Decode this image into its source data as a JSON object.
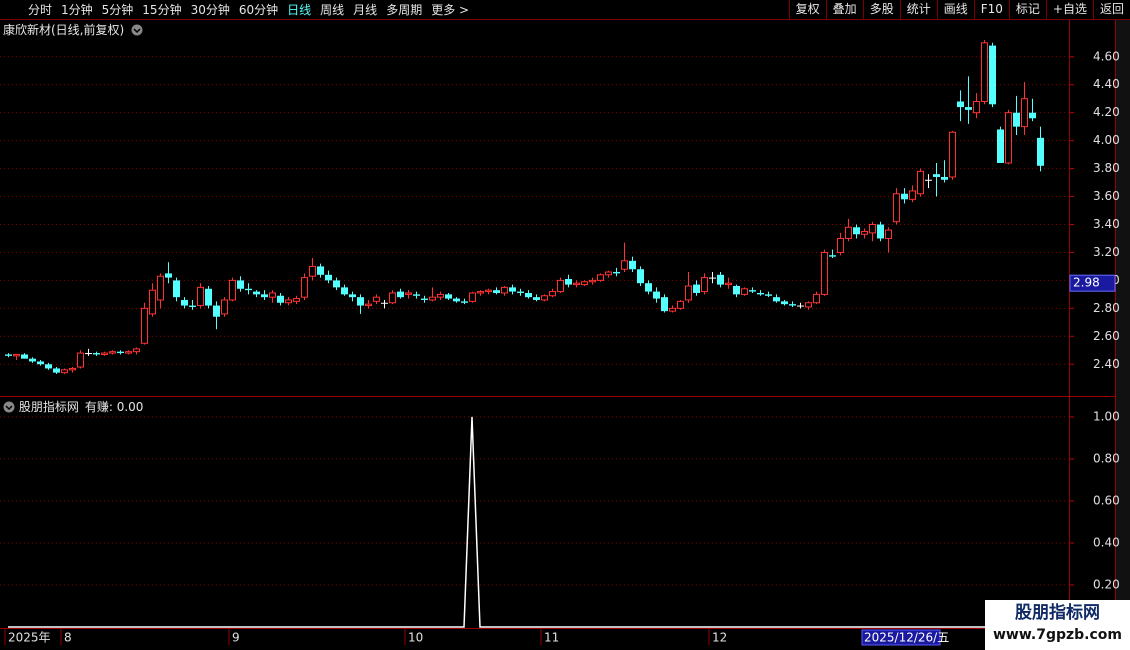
{
  "toolbar": {
    "periods": [
      "分时",
      "1分钟",
      "5分钟",
      "15分钟",
      "30分钟",
      "60分钟",
      "日线",
      "周线",
      "月线",
      "多周期",
      "更多 >"
    ],
    "active_period": 6,
    "buttons": [
      "复权",
      "叠加",
      "多股",
      "统计",
      "画线",
      "F10",
      "标记",
      "+自选",
      "返回"
    ]
  },
  "chart_data": [
    {
      "type": "candlestick",
      "title": "康欣新材(日线,前复权)",
      "categories": [
        "2025年",
        null,
        null,
        null,
        null,
        null,
        null,
        "8",
        null,
        null,
        null,
        null,
        null,
        null,
        null,
        null,
        null,
        null,
        null,
        null,
        null,
        null,
        null,
        null,
        null,
        null,
        null,
        null,
        "9",
        null,
        null,
        null,
        null,
        null,
        null,
        null,
        null,
        null,
        null,
        null,
        null,
        null,
        null,
        null,
        null,
        null,
        null,
        null,
        null,
        null,
        "10",
        null,
        null,
        null,
        null,
        null,
        null,
        null,
        null,
        null,
        null,
        null,
        null,
        null,
        null,
        null,
        null,
        "11",
        null,
        null,
        null,
        null,
        null,
        null,
        null,
        null,
        null,
        null,
        null,
        null,
        null,
        null,
        null,
        null,
        null,
        null,
        null,
        null,
        "12",
        null,
        null,
        null,
        null,
        null,
        null,
        null,
        null,
        null,
        null,
        null,
        null,
        null,
        null,
        null,
        null,
        null,
        null,
        "2025/12/26/五",
        null,
        null,
        null,
        null,
        null,
        null,
        null,
        null,
        null,
        null,
        null,
        null,
        null,
        null,
        null,
        null,
        null,
        null,
        null,
        null,
        null,
        null
      ],
      "open": [
        2.47,
        2.46,
        2.47,
        2.44,
        2.42,
        2.4,
        2.37,
        2.34,
        2.36,
        2.38,
        2.48,
        2.48,
        2.47,
        2.48,
        2.49,
        2.48,
        2.49,
        2.55,
        2.76,
        2.86,
        3.05,
        3.0,
        2.86,
        2.82,
        2.82,
        2.94,
        2.82,
        2.76,
        2.86,
        3.0,
        2.94,
        2.92,
        2.9,
        2.88,
        2.89,
        2.84,
        2.85,
        2.88,
        3.03,
        3.1,
        3.04,
        3.0,
        2.95,
        2.9,
        2.88,
        2.82,
        2.85,
        2.84,
        2.84,
        2.92,
        2.9,
        2.9,
        2.87,
        2.86,
        2.88,
        2.9,
        2.87,
        2.85,
        2.85,
        2.91,
        2.92,
        2.93,
        2.91,
        2.95,
        2.92,
        2.91,
        2.88,
        2.86,
        2.89,
        2.92,
        3.01,
        2.97,
        2.97,
        2.99,
        3.0,
        3.04,
        3.06,
        3.08,
        3.14,
        3.08,
        2.98,
        2.92,
        2.88,
        2.78,
        2.8,
        2.86,
        2.97,
        2.92,
        3.02,
        3.04,
        2.97,
        2.96,
        2.9,
        2.93,
        2.91,
        2.9,
        2.88,
        2.85,
        2.83,
        2.82,
        2.81,
        2.84,
        2.9,
        3.18,
        3.2,
        3.3,
        3.38,
        3.33,
        3.34,
        3.4,
        3.3,
        3.42,
        3.62,
        3.58,
        3.62,
        3.72,
        3.76,
        3.74,
        3.74,
        4.28,
        4.24,
        4.2,
        4.28,
        4.68,
        4.08,
        3.84,
        4.2,
        4.1,
        4.2,
        4.02
      ],
      "high": [
        2.48,
        2.47,
        2.48,
        2.45,
        2.43,
        2.41,
        2.38,
        2.37,
        2.38,
        2.5,
        2.51,
        2.49,
        2.49,
        2.5,
        2.5,
        2.5,
        2.52,
        2.84,
        2.98,
        3.05,
        3.13,
        3.02,
        2.88,
        2.86,
        2.98,
        2.96,
        2.85,
        2.88,
        3.02,
        3.03,
        2.98,
        2.93,
        2.93,
        2.93,
        2.91,
        2.88,
        2.89,
        3.05,
        3.16,
        3.12,
        3.07,
        3.02,
        2.97,
        2.92,
        2.9,
        2.86,
        2.9,
        2.86,
        2.93,
        2.94,
        2.93,
        2.92,
        2.89,
        2.95,
        2.92,
        2.91,
        2.88,
        2.87,
        2.92,
        2.93,
        2.94,
        2.95,
        2.96,
        2.97,
        2.94,
        2.93,
        2.9,
        2.9,
        2.94,
        3.02,
        3.04,
        3.0,
        3.0,
        3.02,
        3.05,
        3.07,
        3.09,
        3.27,
        3.17,
        3.1,
        3.0,
        2.95,
        2.9,
        2.82,
        2.86,
        3.06,
        3.0,
        3.05,
        3.06,
        3.06,
        3.02,
        2.97,
        2.95,
        2.95,
        2.93,
        2.92,
        2.9,
        2.86,
        2.85,
        2.84,
        2.85,
        2.92,
        3.22,
        3.22,
        3.34,
        3.44,
        3.4,
        3.37,
        3.42,
        3.42,
        3.38,
        3.66,
        3.66,
        3.68,
        3.8,
        3.76,
        3.84,
        3.86,
        4.07,
        4.36,
        4.46,
        4.34,
        4.72,
        4.7,
        4.1,
        4.22,
        4.32,
        4.42,
        4.3,
        4.1
      ],
      "low": [
        2.45,
        2.43,
        2.44,
        2.41,
        2.39,
        2.36,
        2.33,
        2.33,
        2.34,
        2.37,
        2.46,
        2.46,
        2.46,
        2.47,
        2.47,
        2.47,
        2.47,
        2.54,
        2.74,
        2.8,
        2.98,
        2.85,
        2.8,
        2.79,
        2.8,
        2.8,
        2.65,
        2.74,
        2.85,
        2.92,
        2.9,
        2.88,
        2.86,
        2.84,
        2.82,
        2.82,
        2.83,
        2.86,
        3.0,
        3.02,
        2.98,
        2.93,
        2.89,
        2.85,
        2.76,
        2.8,
        2.83,
        2.8,
        2.83,
        2.87,
        2.87,
        2.87,
        2.84,
        2.85,
        2.86,
        2.86,
        2.84,
        2.83,
        2.84,
        2.89,
        2.9,
        2.9,
        2.89,
        2.9,
        2.89,
        2.87,
        2.85,
        2.85,
        2.88,
        2.91,
        2.95,
        2.95,
        2.96,
        2.97,
        2.99,
        3.02,
        3.03,
        3.06,
        3.06,
        2.96,
        2.9,
        2.84,
        2.77,
        2.77,
        2.79,
        2.84,
        2.89,
        2.9,
        2.98,
        2.95,
        2.94,
        2.88,
        2.89,
        2.91,
        2.89,
        2.88,
        2.84,
        2.82,
        2.81,
        2.8,
        2.79,
        2.83,
        2.89,
        3.16,
        3.18,
        3.28,
        3.3,
        3.3,
        3.28,
        3.28,
        3.2,
        3.4,
        3.55,
        3.56,
        3.6,
        3.66,
        3.6,
        3.7,
        3.72,
        4.14,
        4.12,
        4.16,
        4.26,
        4.24,
        3.84,
        3.83,
        4.04,
        4.04,
        4.14,
        3.78
      ],
      "close": [
        2.46,
        2.47,
        2.44,
        2.42,
        2.4,
        2.37,
        2.34,
        2.36,
        2.37,
        2.48,
        2.48,
        2.47,
        2.48,
        2.49,
        2.48,
        2.49,
        2.51,
        2.8,
        2.93,
        3.03,
        3.02,
        2.88,
        2.82,
        2.81,
        2.95,
        2.82,
        2.74,
        2.86,
        3.0,
        2.94,
        2.93,
        2.9,
        2.88,
        2.91,
        2.84,
        2.86,
        2.87,
        3.02,
        3.1,
        3.04,
        3.0,
        2.95,
        2.9,
        2.88,
        2.82,
        2.83,
        2.88,
        2.84,
        2.91,
        2.88,
        2.91,
        2.89,
        2.86,
        2.88,
        2.9,
        2.87,
        2.85,
        2.84,
        2.91,
        2.92,
        2.93,
        2.91,
        2.95,
        2.92,
        2.91,
        2.88,
        2.86,
        2.89,
        2.92,
        3.0,
        2.97,
        2.98,
        2.99,
        3.0,
        3.04,
        3.06,
        3.05,
        3.14,
        3.08,
        2.98,
        2.92,
        2.87,
        2.78,
        2.8,
        2.85,
        2.96,
        2.91,
        3.02,
        3.02,
        2.97,
        2.98,
        2.9,
        2.94,
        2.92,
        2.9,
        2.89,
        2.85,
        2.83,
        2.82,
        2.82,
        2.84,
        2.9,
        3.2,
        3.17,
        3.3,
        3.38,
        3.33,
        3.35,
        3.4,
        3.3,
        3.36,
        3.62,
        3.58,
        3.64,
        3.78,
        3.72,
        3.74,
        3.72,
        4.06,
        4.24,
        4.22,
        4.28,
        4.7,
        4.26,
        3.84,
        4.2,
        4.1,
        4.3,
        4.16,
        3.82
      ],
      "up_color": "#ff3232",
      "down_color": "#54ffff",
      "ylim": [
        2.18,
        4.72
      ],
      "yticks": [
        {
          "value": 2.4,
          "label": "2.40"
        },
        {
          "value": 2.6,
          "label": "2.60"
        },
        {
          "value": 2.8,
          "label": "2.80"
        },
        {
          "value": 3.0,
          "label": "3.00"
        },
        {
          "value": 3.2,
          "label": "3.20"
        },
        {
          "value": 3.4,
          "label": "3.40"
        },
        {
          "value": 3.6,
          "label": "3.60"
        },
        {
          "value": 3.8,
          "label": "3.80"
        },
        {
          "value": 4.0,
          "label": "4.00"
        },
        {
          "value": 4.2,
          "label": "4.20"
        },
        {
          "value": 4.4,
          "label": "4.40"
        },
        {
          "value": 4.6,
          "label": "4.60"
        }
      ],
      "price_marker": 2.98,
      "grid": true
    },
    {
      "type": "line",
      "title": "股朋指标网",
      "series": [
        {
          "name": "有赚",
          "color": "#ffffff",
          "value_label": "0.00",
          "values": [
            0,
            0,
            0,
            0,
            0,
            0,
            0,
            0,
            0,
            0,
            0,
            0,
            0,
            0,
            0,
            0,
            0,
            0,
            0,
            0,
            0,
            0,
            0,
            0,
            0,
            0,
            0,
            0,
            0,
            0,
            0,
            0,
            0,
            0,
            0,
            0,
            0,
            0,
            0,
            0,
            0,
            0,
            0,
            0,
            0,
            0,
            0,
            0,
            0,
            0,
            0,
            0,
            0,
            0,
            0,
            0,
            0,
            0,
            1,
            0,
            0,
            0,
            0,
            0,
            0,
            0,
            0,
            0,
            0,
            0,
            0,
            0,
            0,
            0,
            0,
            0,
            0,
            0,
            0,
            0,
            0,
            0,
            0,
            0,
            0,
            0,
            0,
            0,
            0,
            0,
            0,
            0,
            0,
            0,
            0,
            0,
            0,
            0,
            0,
            0,
            0,
            0,
            0,
            0,
            0,
            0,
            0,
            0,
            0,
            0,
            0,
            0,
            0,
            0,
            0,
            0,
            0,
            0,
            0,
            0,
            0,
            0,
            0,
            0,
            0,
            0,
            0,
            0,
            0,
            0
          ]
        }
      ],
      "ylim": [
        0,
        1.09
      ],
      "yticks": [
        {
          "value": 0.2,
          "label": "0.20"
        },
        {
          "value": 0.4,
          "label": "0.40"
        },
        {
          "value": 0.6,
          "label": "0.60"
        },
        {
          "value": 0.8,
          "label": "0.80"
        },
        {
          "value": 1.0,
          "label": "1.00"
        }
      ],
      "grid": true
    }
  ],
  "watermark": {
    "title": "股朋指标网",
    "url": "www.7gpzb.com"
  }
}
